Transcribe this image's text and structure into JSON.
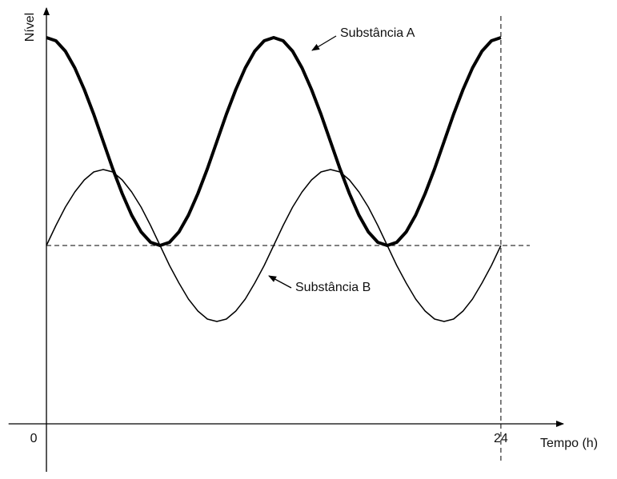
{
  "chart_data": {
    "type": "line",
    "x_label": "Tempo (h)",
    "y_label": "Nível",
    "x": [
      0,
      0.5,
      1,
      1.5,
      2,
      2.5,
      3,
      3.5,
      4,
      4.5,
      5,
      5.5,
      6,
      6.5,
      7,
      7.5,
      8,
      8.5,
      9,
      9.5,
      10,
      10.5,
      11,
      11.5,
      12,
      12.5,
      13,
      13.5,
      14,
      14.5,
      15,
      15.5,
      16,
      16.5,
      17,
      17.5,
      18,
      18.5,
      19,
      19.5,
      20,
      20.5,
      21,
      21.5,
      22,
      22.5,
      23,
      23.5,
      24
    ],
    "series": [
      {
        "name": "Substância A",
        "color": "#000000",
        "values": [
          4.83,
          4.79,
          4.66,
          4.45,
          4.18,
          3.87,
          3.53,
          3.19,
          2.88,
          2.61,
          2.4,
          2.27,
          2.23,
          2.27,
          2.4,
          2.61,
          2.88,
          3.19,
          3.53,
          3.87,
          4.18,
          4.45,
          4.66,
          4.79,
          4.83,
          4.79,
          4.66,
          4.45,
          4.18,
          3.87,
          3.53,
          3.19,
          2.88,
          2.61,
          2.4,
          2.27,
          2.23,
          2.27,
          2.4,
          2.61,
          2.88,
          3.19,
          3.53,
          3.87,
          4.18,
          4.45,
          4.66,
          4.79,
          4.83
        ]
      },
      {
        "name": "Substância B",
        "color": "#000000",
        "values": [
          2.23,
          2.48,
          2.71,
          2.9,
          3.05,
          3.15,
          3.18,
          3.15,
          3.05,
          2.9,
          2.71,
          2.48,
          2.23,
          1.98,
          1.76,
          1.56,
          1.41,
          1.31,
          1.28,
          1.31,
          1.41,
          1.56,
          1.76,
          1.98,
          2.23,
          2.48,
          2.71,
          2.9,
          3.05,
          3.15,
          3.18,
          3.15,
          3.05,
          2.9,
          2.71,
          2.48,
          2.23,
          1.98,
          1.76,
          1.56,
          1.41,
          1.31,
          1.28,
          1.31,
          1.41,
          1.56,
          1.76,
          1.98,
          2.23
        ]
      }
    ],
    "xlim": [
      -2,
      27.3
    ],
    "xticks": [
      0,
      24
    ],
    "ylim": [
      -0.6,
      5.2
    ]
  }
}
